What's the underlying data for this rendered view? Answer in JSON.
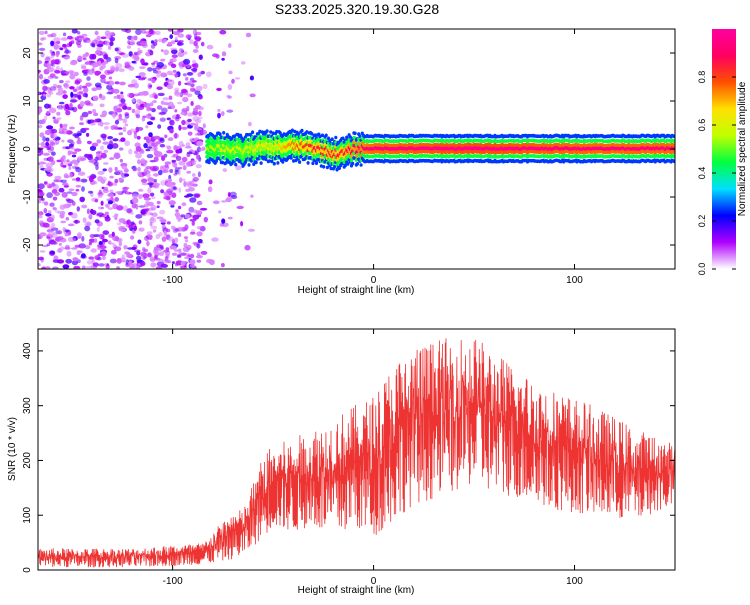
{
  "title": "S233.2025.320.19.30.G28",
  "chart_data": [
    {
      "type": "heatmap",
      "xlabel": "Height of straight line (km)",
      "ylabel": "Frequency (Hz)",
      "xlim": [
        -167,
        150
      ],
      "ylim": [
        -25,
        25
      ],
      "xticks": [
        -100,
        0,
        100
      ],
      "yticks": [
        -20,
        -10,
        0,
        10,
        20
      ],
      "colorbar": {
        "label": "Normalized spectral amplitude",
        "range": [
          0,
          1
        ],
        "ticks": [
          "0.0",
          "0.2",
          "0.4",
          "0.6",
          "0.8"
        ],
        "colors": [
          "#ffffff",
          "#b000ff",
          "#0000ff",
          "#00e0ff",
          "#00ff40",
          "#c0ff00",
          "#ffe000",
          "#ff5000",
          "#ff0060",
          "#ff00a0"
        ]
      },
      "ridge": [
        {
          "x": -83,
          "freq": 0.5,
          "amp": 0.55
        },
        {
          "x": -75,
          "freq": 0.3,
          "amp": 0.6
        },
        {
          "x": -66,
          "freq": -0.5,
          "amp": 0.6
        },
        {
          "x": -58,
          "freq": 0.4,
          "amp": 0.65
        },
        {
          "x": -50,
          "freq": 0.3,
          "amp": 0.65
        },
        {
          "x": -40,
          "freq": 0.6,
          "amp": 0.75
        },
        {
          "x": -30,
          "freq": 0.3,
          "amp": 0.85
        },
        {
          "x": -20,
          "freq": -0.9,
          "amp": 0.85
        },
        {
          "x": -15,
          "freq": -1.0,
          "amp": 0.85
        },
        {
          "x": -10,
          "freq": 0.0,
          "amp": 0.9
        },
        {
          "x": 0,
          "freq": 0.1,
          "amp": 0.95
        },
        {
          "x": 50,
          "freq": 0.1,
          "amp": 0.98
        },
        {
          "x": 100,
          "freq": 0.1,
          "amp": 0.95
        },
        {
          "x": 150,
          "freq": 0.1,
          "amp": 0.95
        }
      ],
      "noise": [
        {
          "x_from": -167,
          "x_to": -85,
          "density": 1.0
        },
        {
          "x_from": -85,
          "x_to": -60,
          "density": 0.15
        }
      ]
    },
    {
      "type": "line",
      "xlabel": "Height of straight line (km)",
      "ylabel": "SNR (10 * v/v)",
      "xlim": [
        -167,
        150
      ],
      "ylim": [
        0,
        440
      ],
      "xticks": [
        -100,
        0,
        100
      ],
      "yticks": [
        0,
        100,
        200,
        300,
        400
      ],
      "series": [
        {
          "color": "#ee3333",
          "envelope": [
            {
              "x": -167,
              "low": 5,
              "high": 40
            },
            {
              "x": -120,
              "low": 5,
              "high": 40
            },
            {
              "x": -85,
              "low": 10,
              "high": 50
            },
            {
              "x": -70,
              "low": 20,
              "high": 110
            },
            {
              "x": -65,
              "low": 25,
              "high": 110
            },
            {
              "x": -55,
              "low": 60,
              "high": 210
            },
            {
              "x": -50,
              "low": 80,
              "high": 230
            },
            {
              "x": -40,
              "low": 70,
              "high": 240
            },
            {
              "x": -30,
              "low": 80,
              "high": 260
            },
            {
              "x": -20,
              "low": 60,
              "high": 280
            },
            {
              "x": -10,
              "low": 80,
              "high": 300
            },
            {
              "x": 0,
              "low": 60,
              "high": 320
            },
            {
              "x": 10,
              "low": 90,
              "high": 380
            },
            {
              "x": 20,
              "low": 120,
              "high": 410
            },
            {
              "x": 30,
              "low": 130,
              "high": 420
            },
            {
              "x": 45,
              "low": 150,
              "high": 430
            },
            {
              "x": 50,
              "low": 160,
              "high": 430
            },
            {
              "x": 60,
              "low": 140,
              "high": 400
            },
            {
              "x": 75,
              "low": 130,
              "high": 360
            },
            {
              "x": 90,
              "low": 110,
              "high": 330
            },
            {
              "x": 110,
              "low": 100,
              "high": 300
            },
            {
              "x": 130,
              "low": 90,
              "high": 260
            },
            {
              "x": 150,
              "low": 120,
              "high": 230
            }
          ]
        }
      ]
    }
  ]
}
